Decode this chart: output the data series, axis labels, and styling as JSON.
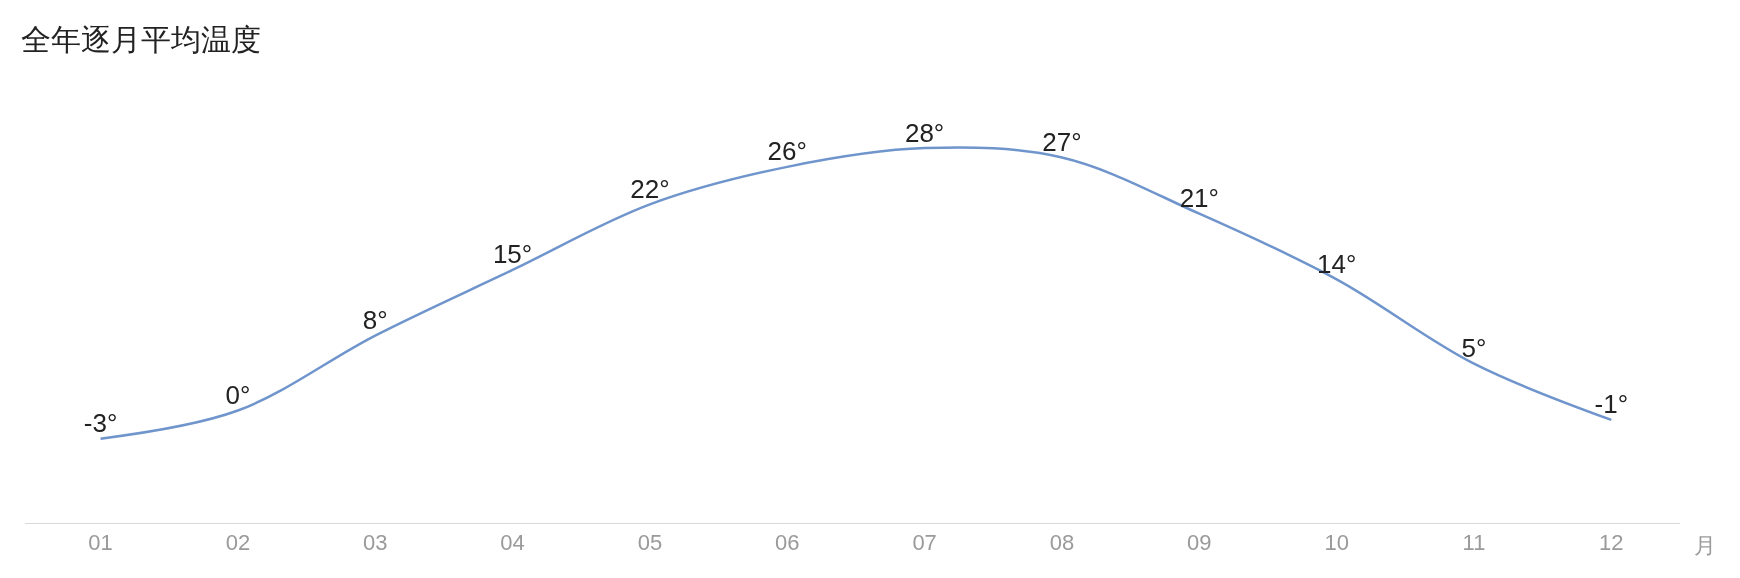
{
  "chart_data": {
    "type": "line",
    "title": "全年逐月平均温度",
    "xlabel": "月",
    "categories": [
      "01",
      "02",
      "03",
      "04",
      "05",
      "06",
      "07",
      "08",
      "09",
      "10",
      "11",
      "12"
    ],
    "series": [
      {
        "color": "#6f95cc",
        "values": [
          -3,
          0,
          8,
          15,
          22,
          26,
          28,
          27,
          21,
          14,
          5,
          -1
        ],
        "value_labels": [
          "-3°",
          "0°",
          "8°",
          "15°",
          "22°",
          "26°",
          "28°",
          "27°",
          "21°",
          "14°",
          "5°",
          "-1°"
        ]
      }
    ],
    "line_style": "solid"
  }
}
